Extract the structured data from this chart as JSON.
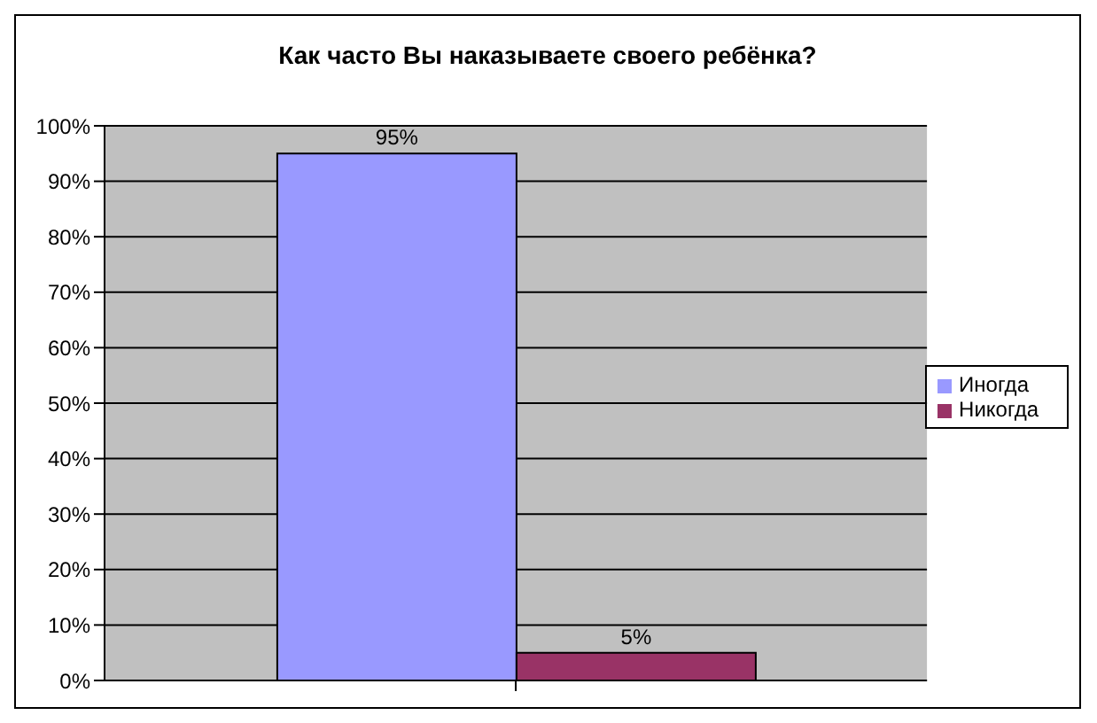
{
  "chart_data": {
    "type": "bar",
    "title": "Как часто Вы наказываете своего ребёнка?",
    "categories": [
      null
    ],
    "series": [
      {
        "name": "Иногда",
        "color": "#9999ff",
        "values": [
          95
        ],
        "value_labels": [
          "95%"
        ]
      },
      {
        "name": "Никогда",
        "color": "#993366",
        "values": [
          5
        ],
        "value_labels": [
          "5%"
        ]
      }
    ],
    "ylim": [
      0,
      100
    ],
    "yticks": [
      {
        "value": 0,
        "label": "0%"
      },
      {
        "value": 10,
        "label": "10%"
      },
      {
        "value": 20,
        "label": "20%"
      },
      {
        "value": 30,
        "label": "30%"
      },
      {
        "value": 40,
        "label": "40%"
      },
      {
        "value": 50,
        "label": "50%"
      },
      {
        "value": 60,
        "label": "60%"
      },
      {
        "value": 70,
        "label": "70%"
      },
      {
        "value": 80,
        "label": "80%"
      },
      {
        "value": 90,
        "label": "90%"
      },
      {
        "value": 100,
        "label": "100%"
      }
    ],
    "grid": "y",
    "legend": "right"
  }
}
